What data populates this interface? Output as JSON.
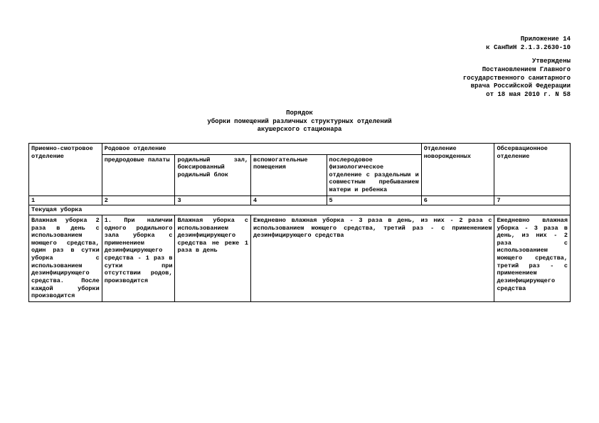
{
  "header": {
    "l1": "Приложение 14",
    "l2": "к СанПиН 2.1.3.2630-10",
    "l3": "Утверждены",
    "l4": "Постановлением Главного",
    "l5": "государственного санитарного",
    "l6": "врача Российской Федерации",
    "l7": "от 18 мая 2010 г. N 58"
  },
  "title": {
    "l1": "Порядок",
    "l2": "уборки помещений различных структурных отделений",
    "l3": "акушерского стационара"
  },
  "table": {
    "h1": "Приемно-смотровое отделение",
    "h2": "Родовое отделение",
    "h6": "Отделение новорожденных",
    "h7": "Обсервационное отделение",
    "s2": "предродовые палаты",
    "s3": "родильный зал, боксированный родильный блок",
    "s4": "вспомогательные помещения",
    "s5": "послеродовое физиологическое отделение с раздельным и совместным пребыванием матери и ребенка",
    "n1": "1",
    "n2": "2",
    "n3": "3",
    "n4": "4",
    "n5": "5",
    "n6": "6",
    "n7": "7",
    "section": "Текущая уборка",
    "c1": "Влажная уборка 2 раза в день с использованием моющего средства, один раз в сутки уборка с использованием дезинфицирующего средства. После каждой уборки производится",
    "c2": "1. При наличии одного родильного зала уборка с применением дезинфицирующего средства - 1 раз в сутки при отсутствии родов, производится",
    "c3": "Влажная уборка с использованием дезинфицирующего средства не реже 1 раза в день",
    "c4": "Ежедневно влажная уборка - 3 раза в день, из них - 2 раза с использованием моющего средства, третий раз - с применением дезинфицирующего средства",
    "c5": "Ежедневно влажная уборка - 3 раза в день, из них - 2 раза с использованием моющего средства, третий раз - с применением дезинфицирующего средства"
  },
  "colwidths": [
    "13.5%",
    "13.5%",
    "14%",
    "14%",
    "17.5%",
    "13.5%",
    "14%"
  ]
}
